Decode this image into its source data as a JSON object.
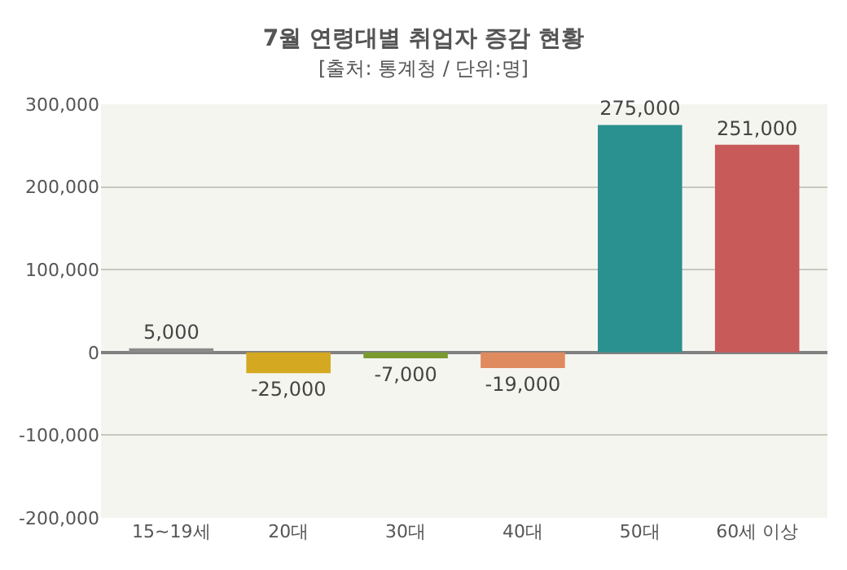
{
  "chart_data": {
    "type": "bar",
    "title": "7월 연령대별 취업자 증감 현황",
    "subtitle": "[출처: 통계청 / 단위:명]",
    "categories": [
      "15~19세",
      "20대",
      "30대",
      "40대",
      "50대",
      "60세 이상"
    ],
    "values": [
      5000,
      -25000,
      -7000,
      -19000,
      275000,
      251000
    ],
    "colors": [
      "#8a8a8a",
      "#d4a820",
      "#7a9a30",
      "#e08a60",
      "#2a9090",
      "#c85a5a"
    ],
    "ylim": [
      -200000,
      300000
    ],
    "yticks": [
      {
        "value": -200000,
        "label": "-200,000"
      },
      {
        "value": -100000,
        "label": "-100,000"
      },
      {
        "value": 0,
        "label": "0"
      },
      {
        "value": 100000,
        "label": "100,000"
      },
      {
        "value": 200000,
        "label": "200,000"
      },
      {
        "value": 300000,
        "label": "300,000"
      }
    ],
    "value_labels": [
      "5,000",
      "-25,000",
      "-7,000",
      "-19,000",
      "275,000",
      "251,000"
    ],
    "grid": "y",
    "legend": false
  }
}
